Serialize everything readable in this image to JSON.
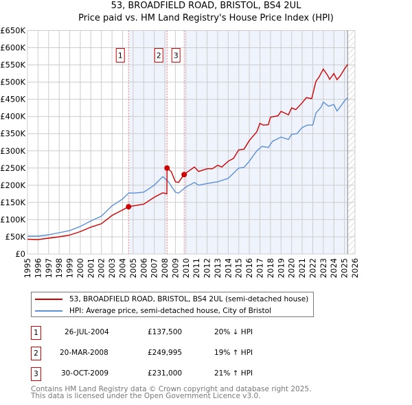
{
  "chart_data": {
    "type": "line",
    "title": "53, BROADFIELD ROAD, BRISTOL, BS4 2UL",
    "subtitle": "Price paid vs. HM Land Registry's House Price Index (HPI)",
    "xlim": [
      1995,
      2026
    ],
    "ylim": [
      0,
      650000
    ],
    "yticks": [
      0,
      50000,
      100000,
      150000,
      200000,
      250000,
      300000,
      350000,
      400000,
      450000,
      500000,
      550000,
      600000,
      650000
    ],
    "ytick_labels": [
      "£0",
      "£50K",
      "£100K",
      "£150K",
      "£200K",
      "£250K",
      "£300K",
      "£350K",
      "£400K",
      "£450K",
      "£500K",
      "£550K",
      "£600K",
      "£650K"
    ],
    "xticks": [
      "1995",
      "1996",
      "1997",
      "1998",
      "1999",
      "2000",
      "2001",
      "2002",
      "2003",
      "2004",
      "2005",
      "2006",
      "2007",
      "2008",
      "2009",
      "2010",
      "2011",
      "2012",
      "2013",
      "2014",
      "2015",
      "2016",
      "2017",
      "2018",
      "2019",
      "2020",
      "2021",
      "2022",
      "2023",
      "2024",
      "2025",
      "2026"
    ],
    "grid": true,
    "legend_placement": "below",
    "series": [
      {
        "name": "53, BROADFIELD ROAD, BRISTOL, BS4 2UL (semi-detached house)",
        "color": "#cc0000",
        "x": [
          1995,
          1996,
          1997,
          1998,
          1999,
          2000,
          2001,
          2002,
          2003,
          2004,
          2004.57,
          2005,
          2006,
          2007,
          2007.8,
          2008.19,
          2008.21,
          2008.6,
          2009,
          2009.3,
          2009.82,
          2010.2,
          2010.8,
          2011.2,
          2012,
          2012.5,
          2013,
          2013.4,
          2014,
          2014.5,
          2015,
          2015.5,
          2016,
          2016.7,
          2017,
          2017.3,
          2017.8,
          2018,
          2018.7,
          2019,
          2019.7,
          2020,
          2020.4,
          2021,
          2021.4,
          2021.9,
          2022.3,
          2022.6,
          2023,
          2023.4,
          2023.6,
          2024,
          2024.3,
          2024.6,
          2025,
          2025.3
        ],
        "y": [
          43000,
          42000,
          46000,
          50000,
          55000,
          65000,
          78000,
          88000,
          112000,
          128000,
          137500,
          140000,
          145000,
          165000,
          178000,
          175000,
          249995,
          240000,
          210000,
          208000,
          231000,
          240000,
          253000,
          240000,
          248000,
          248000,
          258000,
          253000,
          270000,
          278000,
          303000,
          305000,
          330000,
          355000,
          380000,
          375000,
          376000,
          398000,
          402000,
          415000,
          405000,
          425000,
          420000,
          440000,
          455000,
          452000,
          502000,
          515000,
          538000,
          520000,
          508000,
          525000,
          507000,
          518000,
          538000,
          552000
        ]
      },
      {
        "name": "HPI: Average price, semi-detached house, City of Bristol",
        "color": "#5b8fd6",
        "x": [
          1995,
          1996,
          1997,
          1998,
          1999,
          2000,
          2001,
          2002,
          2003,
          2004,
          2004.6,
          2005,
          2006,
          2007,
          2007.8,
          2008.3,
          2009,
          2009.3,
          2010,
          2010.8,
          2011.2,
          2012,
          2013,
          2014,
          2015,
          2015.5,
          2016,
          2016.7,
          2017.2,
          2017.8,
          2018.2,
          2019,
          2019.7,
          2020,
          2020.5,
          2021,
          2021.5,
          2022,
          2022.3,
          2022.8,
          2023,
          2023.5,
          2024,
          2024.3,
          2024.7,
          2025,
          2025.3
        ],
        "y": [
          52000,
          52000,
          56000,
          62000,
          68000,
          80000,
          96000,
          110000,
          140000,
          160000,
          178000,
          177000,
          180000,
          200000,
          225000,
          212000,
          180000,
          177000,
          195000,
          208000,
          200000,
          205000,
          210000,
          220000,
          250000,
          252000,
          270000,
          300000,
          313000,
          310000,
          328000,
          340000,
          333000,
          348000,
          350000,
          368000,
          375000,
          375000,
          410000,
          428000,
          442000,
          430000,
          435000,
          416000,
          432000,
          445000,
          455000
        ]
      }
    ],
    "sales": [
      {
        "label": "1",
        "x": 2004.57,
        "y": 137500
      },
      {
        "label": "2",
        "x": 2008.21,
        "y": 249995
      },
      {
        "label": "3",
        "x": 2009.83,
        "y": 231000
      }
    ],
    "forecast_start": 2025.3
  },
  "legend": {
    "property": "53, BROADFIELD ROAD, BRISTOL, BS4 2UL (semi-detached house)",
    "hpi": "HPI: Average price, semi-detached house, City of Bristol"
  },
  "transactions": [
    {
      "num": "1",
      "date": "26-JUL-2004",
      "price": "£137,500",
      "hpi": "20% ↓ HPI"
    },
    {
      "num": "2",
      "date": "20-MAR-2008",
      "price": "£249,995",
      "hpi": "19% ↑ HPI"
    },
    {
      "num": "3",
      "date": "30-OCT-2009",
      "price": "£231,000",
      "hpi": "21% ↑ HPI"
    }
  ],
  "footer": {
    "line1": "Contains HM Land Registry data © Crown copyright and database right 2025.",
    "line2": "This data is licensed under the Open Government Licence v3.0."
  }
}
